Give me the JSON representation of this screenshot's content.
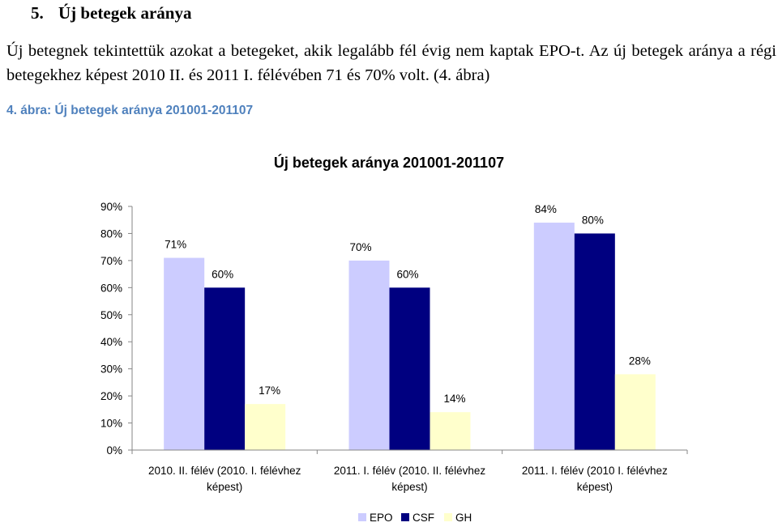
{
  "section": {
    "number": "5.",
    "title": "Új betegek aránya"
  },
  "paragraph": "Új betegnek tekintettük azokat a betegeket, akik legalább fél évig nem kaptak EPO-t. Az új betegek aránya a régi betegekhez képest 2010 II. és 2011 I. félévében 71 és 70% volt. (4. ábra)",
  "figure_caption": "4. ábra: Új betegek aránya 201001-201107",
  "colors": {
    "EPO": "#ccccff",
    "CSF": "#000080",
    "GH": "#ffffcc",
    "caption": "#4f81bd"
  },
  "chart_data": {
    "type": "bar",
    "title": "Új betegek aránya 201001-201107",
    "categories": [
      [
        "2010. II. félév (2010. I. félévhez",
        "képest)"
      ],
      [
        "2011. I. félév (2010. II. félévhez",
        "képest)"
      ],
      [
        "2011. I. félév (2010 I. félévhez",
        "képest)"
      ]
    ],
    "series": [
      {
        "name": "EPO",
        "values": [
          71,
          70,
          84
        ],
        "labels": [
          "71%",
          "70%",
          "84%"
        ]
      },
      {
        "name": "CSF",
        "values": [
          60,
          60,
          80
        ],
        "labels": [
          "60%",
          "60%",
          "80%"
        ]
      },
      {
        "name": "GH",
        "values": [
          17,
          14,
          28
        ],
        "labels": [
          "17%",
          "14%",
          "28%"
        ]
      }
    ],
    "ylim": [
      0,
      90
    ],
    "yticks": [
      0,
      10,
      20,
      30,
      40,
      50,
      60,
      70,
      80,
      90
    ],
    "ytick_labels": [
      "0%",
      "10%",
      "20%",
      "30%",
      "40%",
      "50%",
      "60%",
      "70%",
      "80%",
      "90%"
    ],
    "xlabel": "",
    "ylabel": "",
    "legend_position": "bottom",
    "grid": false
  }
}
